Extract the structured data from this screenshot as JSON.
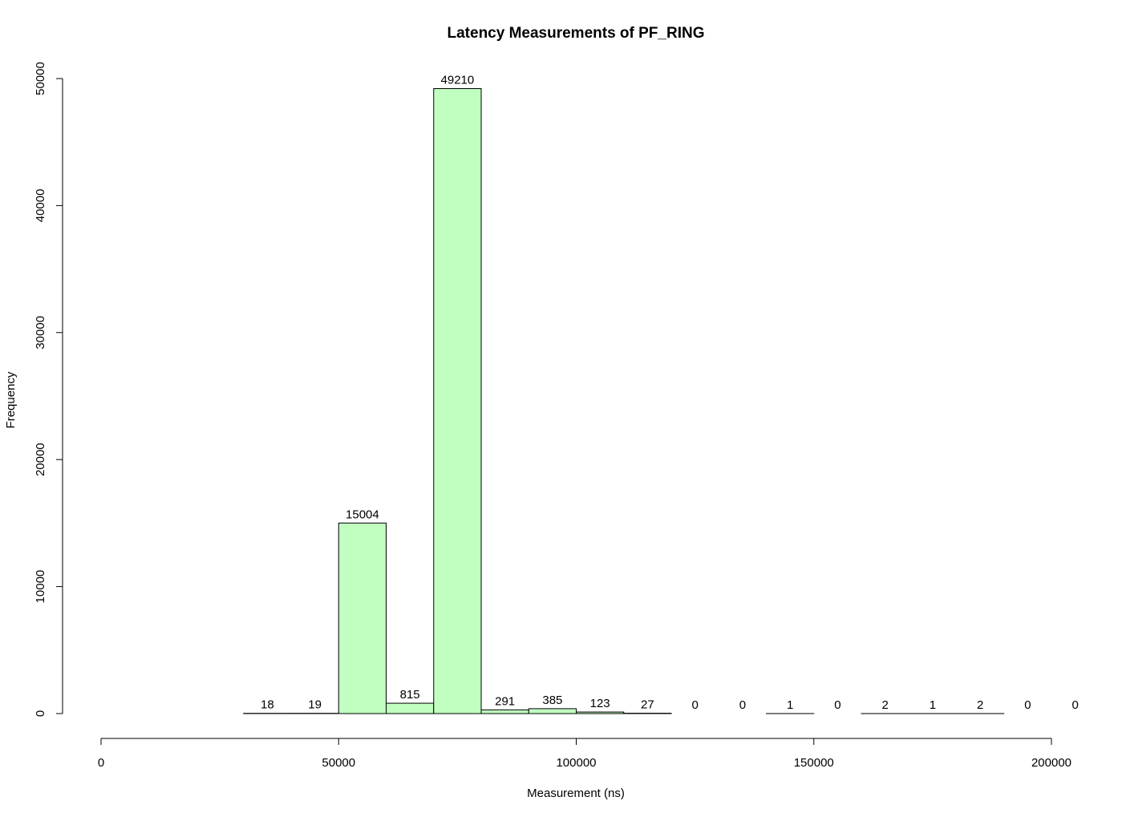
{
  "chart_data": {
    "type": "bar",
    "title": "Latency Measurements of PF_RING",
    "xlabel": "Measurement (ns)",
    "ylabel": "Frequency",
    "bin_edges": [
      30000,
      40000,
      50000,
      60000,
      70000,
      80000,
      90000,
      100000,
      110000,
      120000,
      130000,
      140000,
      150000,
      160000,
      170000,
      180000,
      190000,
      200000,
      210000
    ],
    "values": [
      18,
      19,
      15004,
      815,
      49210,
      291,
      385,
      123,
      27,
      0,
      0,
      1,
      0,
      2,
      1,
      2,
      0,
      0
    ],
    "value_labels": [
      "18",
      "19",
      "15004",
      "815",
      "49210",
      "291",
      "385",
      "123",
      "27",
      "0",
      "0",
      "1",
      "0",
      "2",
      "1",
      "2",
      "0",
      "0"
    ],
    "xlim": [
      0,
      200000
    ],
    "ylim": [
      0,
      50000
    ],
    "x_ticks": [
      0,
      50000,
      100000,
      150000,
      200000
    ],
    "x_tick_labels": [
      "0",
      "50000",
      "100000",
      "150000",
      "200000"
    ],
    "y_ticks": [
      0,
      10000,
      20000,
      30000,
      40000,
      50000
    ],
    "y_tick_labels": [
      "0",
      "10000",
      "20000",
      "30000",
      "40000",
      "50000"
    ],
    "bar_color": "#c1ffc1",
    "bar_edge_color": "#000000",
    "grid": false
  }
}
